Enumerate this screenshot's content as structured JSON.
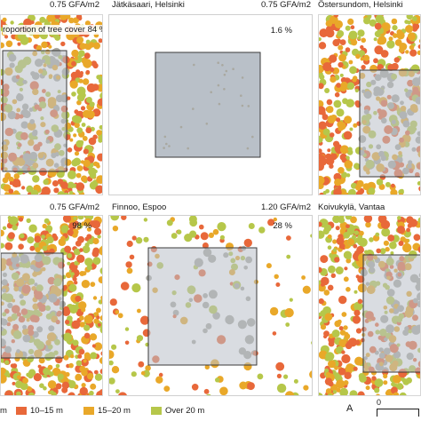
{
  "colors": {
    "height_10_15": "#e8683a",
    "height_15_20": "#e9a829",
    "over_20": "#b6c74a",
    "site_box": "#b9c0c8",
    "gray_canopy": "#a9a8a0"
  },
  "panels": [
    {
      "id": "top-left",
      "left_label": "",
      "gfa": "0.75 GFA/m2",
      "inset_text": "roportion of tree cover 84 %",
      "tree_density": 0.8,
      "gray_share": 0.35
    },
    {
      "id": "top-middle",
      "left_label": "Jätkäsaari, Helsinki",
      "gfa": "0.75 GFA/m2",
      "inset_text": "1.6 %",
      "tree_density": 0.02,
      "gray_share": 1.0
    },
    {
      "id": "top-right",
      "left_label": "Östersundom, Helsinki",
      "gfa": "",
      "inset_text": "",
      "tree_density": 0.75,
      "gray_share": 0.35
    },
    {
      "id": "bottom-left",
      "left_label": "",
      "gfa": "0.75 GFA/m2",
      "inset_text": "98 %",
      "tree_density": 0.9,
      "gray_share": 0.3
    },
    {
      "id": "bottom-middle",
      "left_label": "Finnoo, Espoo",
      "gfa": "1.20 GFA/m2",
      "inset_text": "28 %",
      "tree_density": 0.28,
      "gray_share": 0.5
    },
    {
      "id": "bottom-right",
      "left_label": "Koivukylä, Vantaa",
      "gfa": "",
      "inset_text": "",
      "tree_density": 0.75,
      "gray_share": 0.35
    }
  ],
  "legend": {
    "items": [
      {
        "label": "m",
        "color": "#e8683a"
      },
      {
        "label": "10–15 m",
        "color": "#e8683a"
      },
      {
        "label": "15–20 m",
        "color": "#e9a829"
      },
      {
        "label": "Over 20 m",
        "color": "#b6c74a"
      }
    ],
    "north_symbol": "A",
    "scale_label": "0"
  }
}
